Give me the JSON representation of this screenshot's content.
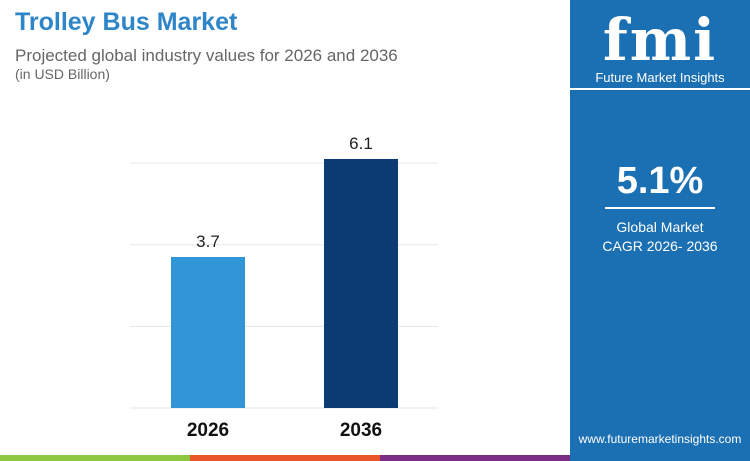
{
  "header": {
    "title": "Trolley Bus Market",
    "subtitle": "Projected global industry values for 2026 and 2036",
    "unit": "(in USD Billion)"
  },
  "sidebar": {
    "logo_text": "fmi",
    "logo_subtitle": "Future Market Insights",
    "cagr_value": "5.1%",
    "cagr_label_1": "Global Market",
    "cagr_label_2": "CAGR 2026- 2036",
    "url": "www.futuremarketinsights.com"
  },
  "colors": {
    "bar_2026": "#3196d6",
    "bar_2036": "#0a3b73",
    "sidebar": "#1b6fb3",
    "stripes": [
      "#8dc63f",
      "#e8562a",
      "#7b2d86"
    ]
  },
  "chart_data": {
    "type": "bar",
    "categories": [
      "2026",
      "2036"
    ],
    "values": [
      3.7,
      6.1
    ],
    "data_labels": [
      "3.7",
      "6.1"
    ],
    "ylim": [
      0,
      6.1
    ],
    "grid": true,
    "ylabel": "USD Billion"
  }
}
